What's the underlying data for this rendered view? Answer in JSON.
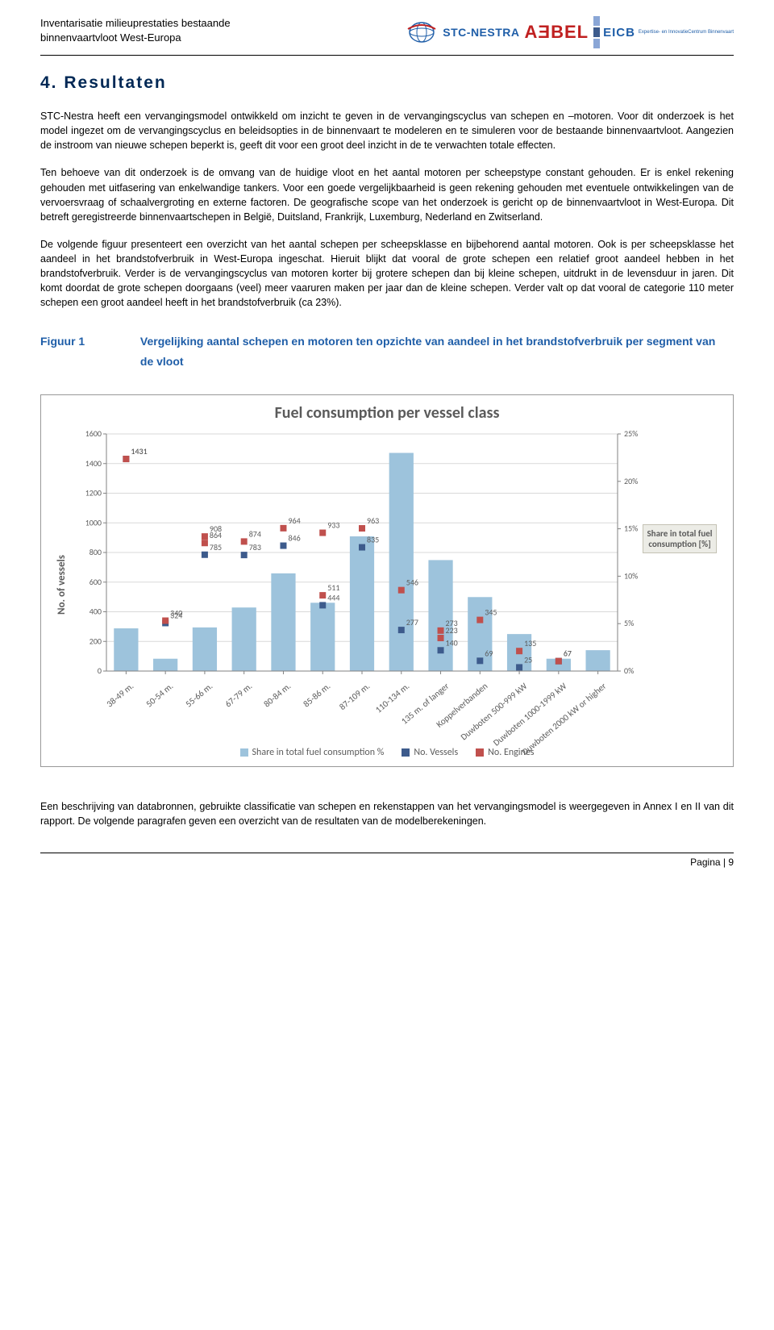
{
  "header": {
    "title_line1": "Inventarisatie milieuprestaties bestaande",
    "title_line2": "binnenvaartvloot West-Europa",
    "stc_label": "STC-NESTRA",
    "a3bel_label": "AƎBEL",
    "eicb_label": "EICB",
    "eicb_sub": "Expertise- en InnovatieCentrum Binnenvaart"
  },
  "section_title": "4. Resultaten",
  "paragraphs": {
    "p1": "STC-Nestra heeft een vervangingsmodel ontwikkeld om inzicht te geven in de vervangingscyclus van schepen en –motoren. Voor dit onderzoek is het model ingezet om de vervangingscyclus en beleidsopties in de binnenvaart te modeleren en te simuleren voor de bestaande binnenvaartvloot. Aangezien de instroom van nieuwe schepen beperkt is, geeft dit voor een groot deel inzicht in de te verwachten totale effecten.",
    "p2": "Ten behoeve van dit onderzoek is de omvang van de huidige vloot en het aantal motoren per scheepstype constant gehouden. Er is enkel rekening gehouden met uitfasering van enkelwandige tankers. Voor een goede vergelijkbaarheid is geen rekening gehouden met eventuele ontwikkelingen van de vervoersvraag of schaalvergroting en externe factoren. De geografische scope van het onderzoek is gericht op de binnenvaartvloot in West-Europa. Dit betreft geregistreerde binnenvaartschepen in België, Duitsland, Frankrijk, Luxemburg, Nederland en Zwitserland.",
    "p3": "De volgende figuur presenteert een overzicht van het aantal schepen per scheepsklasse en bijbehorend aantal motoren. Ook is per scheepsklasse het aandeel in het brandstofverbruik in West-Europa ingeschat. Hieruit blijkt dat vooral de grote schepen een relatief groot aandeel hebben in het brandstofverbruik. Verder is de vervangingscyclus van motoren korter bij grotere schepen dan bij kleine schepen, uitdrukt in de levensduur in jaren. Dit komt doordat de grote schepen doorgaans (veel) meer vaaruren maken per jaar dan de kleine schepen. Verder valt op dat vooral de categorie 110 meter schepen een groot aandeel heeft in het brandstofverbruik (ca 23%)."
  },
  "figure": {
    "label_num": "Figuur 1",
    "label_text": "Vergelijking aantal schepen en motoren ten opzichte van aandeel in het brandstofverbruik per segment van de vloot"
  },
  "chart": {
    "title": "Fuel consumption per vessel class",
    "y_left_label": "No. of vessels",
    "y_right_box": "Share in total fuel consumption [%]",
    "y_left_ticks": [
      0,
      200,
      400,
      600,
      800,
      1000,
      1200,
      1400,
      1600
    ],
    "y_right_ticks": [
      "0%",
      "5%",
      "10%",
      "15%",
      "20%",
      "25%"
    ],
    "bar_color": "#9dc3dc",
    "vessel_marker_color": "#3d5b8c",
    "engine_marker_color": "#c0504d",
    "grid_color": "#d9d9d9",
    "axis_color": "#828282",
    "background": "#ffffff",
    "tick_font_color": "#5b5b5b",
    "categories": [
      {
        "label": "38-49 m.",
        "vessels": 1431,
        "engines": 1431,
        "share_pct": 4.5
      },
      {
        "label": "50-54 m.",
        "vessels": 324,
        "engines": 340,
        "share_pct": 1.3
      },
      {
        "label": "55-66 m.",
        "vessels": 785,
        "engines": 864,
        "share_pct": 4.6,
        "engines_extra": 908
      },
      {
        "label": "67-79 m.",
        "vessels": 783,
        "engines": 874,
        "share_pct": 6.7
      },
      {
        "label": "80-84 m.",
        "vessels": 846,
        "engines": 964,
        "share_pct": 10.3
      },
      {
        "label": "85-86 m.",
        "vessels": 444,
        "engines": 511,
        "share_pct": 7.2,
        "engines_extra": 933
      },
      {
        "label": "87-109 m.",
        "vessels": 835,
        "engines": 963,
        "share_pct": 14.2
      },
      {
        "label": "110-134 m.",
        "vessels": 277,
        "engines": 546,
        "share_pct": 23.0
      },
      {
        "label": "135 m. of langer",
        "vessels": 140,
        "engines": 273,
        "share_pct": 11.7,
        "engines_extra": 223
      },
      {
        "label": "Koppelverbanden",
        "vessels": 69,
        "engines": 345,
        "share_pct": 7.8
      },
      {
        "label": "Duwboten 500-999 kW",
        "vessels": 25,
        "engines": 135,
        "share_pct": 3.9
      },
      {
        "label": "Duwboten 1000-1999 kW",
        "vessels": 67,
        "engines": 67,
        "share_pct": 1.3
      },
      {
        "label": "Duwboten 2000 kW or higher",
        "vessels": 0,
        "engines": 0,
        "share_pct": 2.2
      }
    ],
    "legend": {
      "share": "Share in total fuel consumption %",
      "vessels": "No. Vessels",
      "engines": "No. Engines"
    }
  },
  "after_chart": "Een beschrijving van databronnen, gebruikte classificatie van schepen en rekenstappen van het vervangingsmodel is weergegeven in Annex I en II van dit rapport. De volgende paragrafen geven een overzicht van de resultaten van de modelberekeningen.",
  "footer": "Pagina | 9"
}
